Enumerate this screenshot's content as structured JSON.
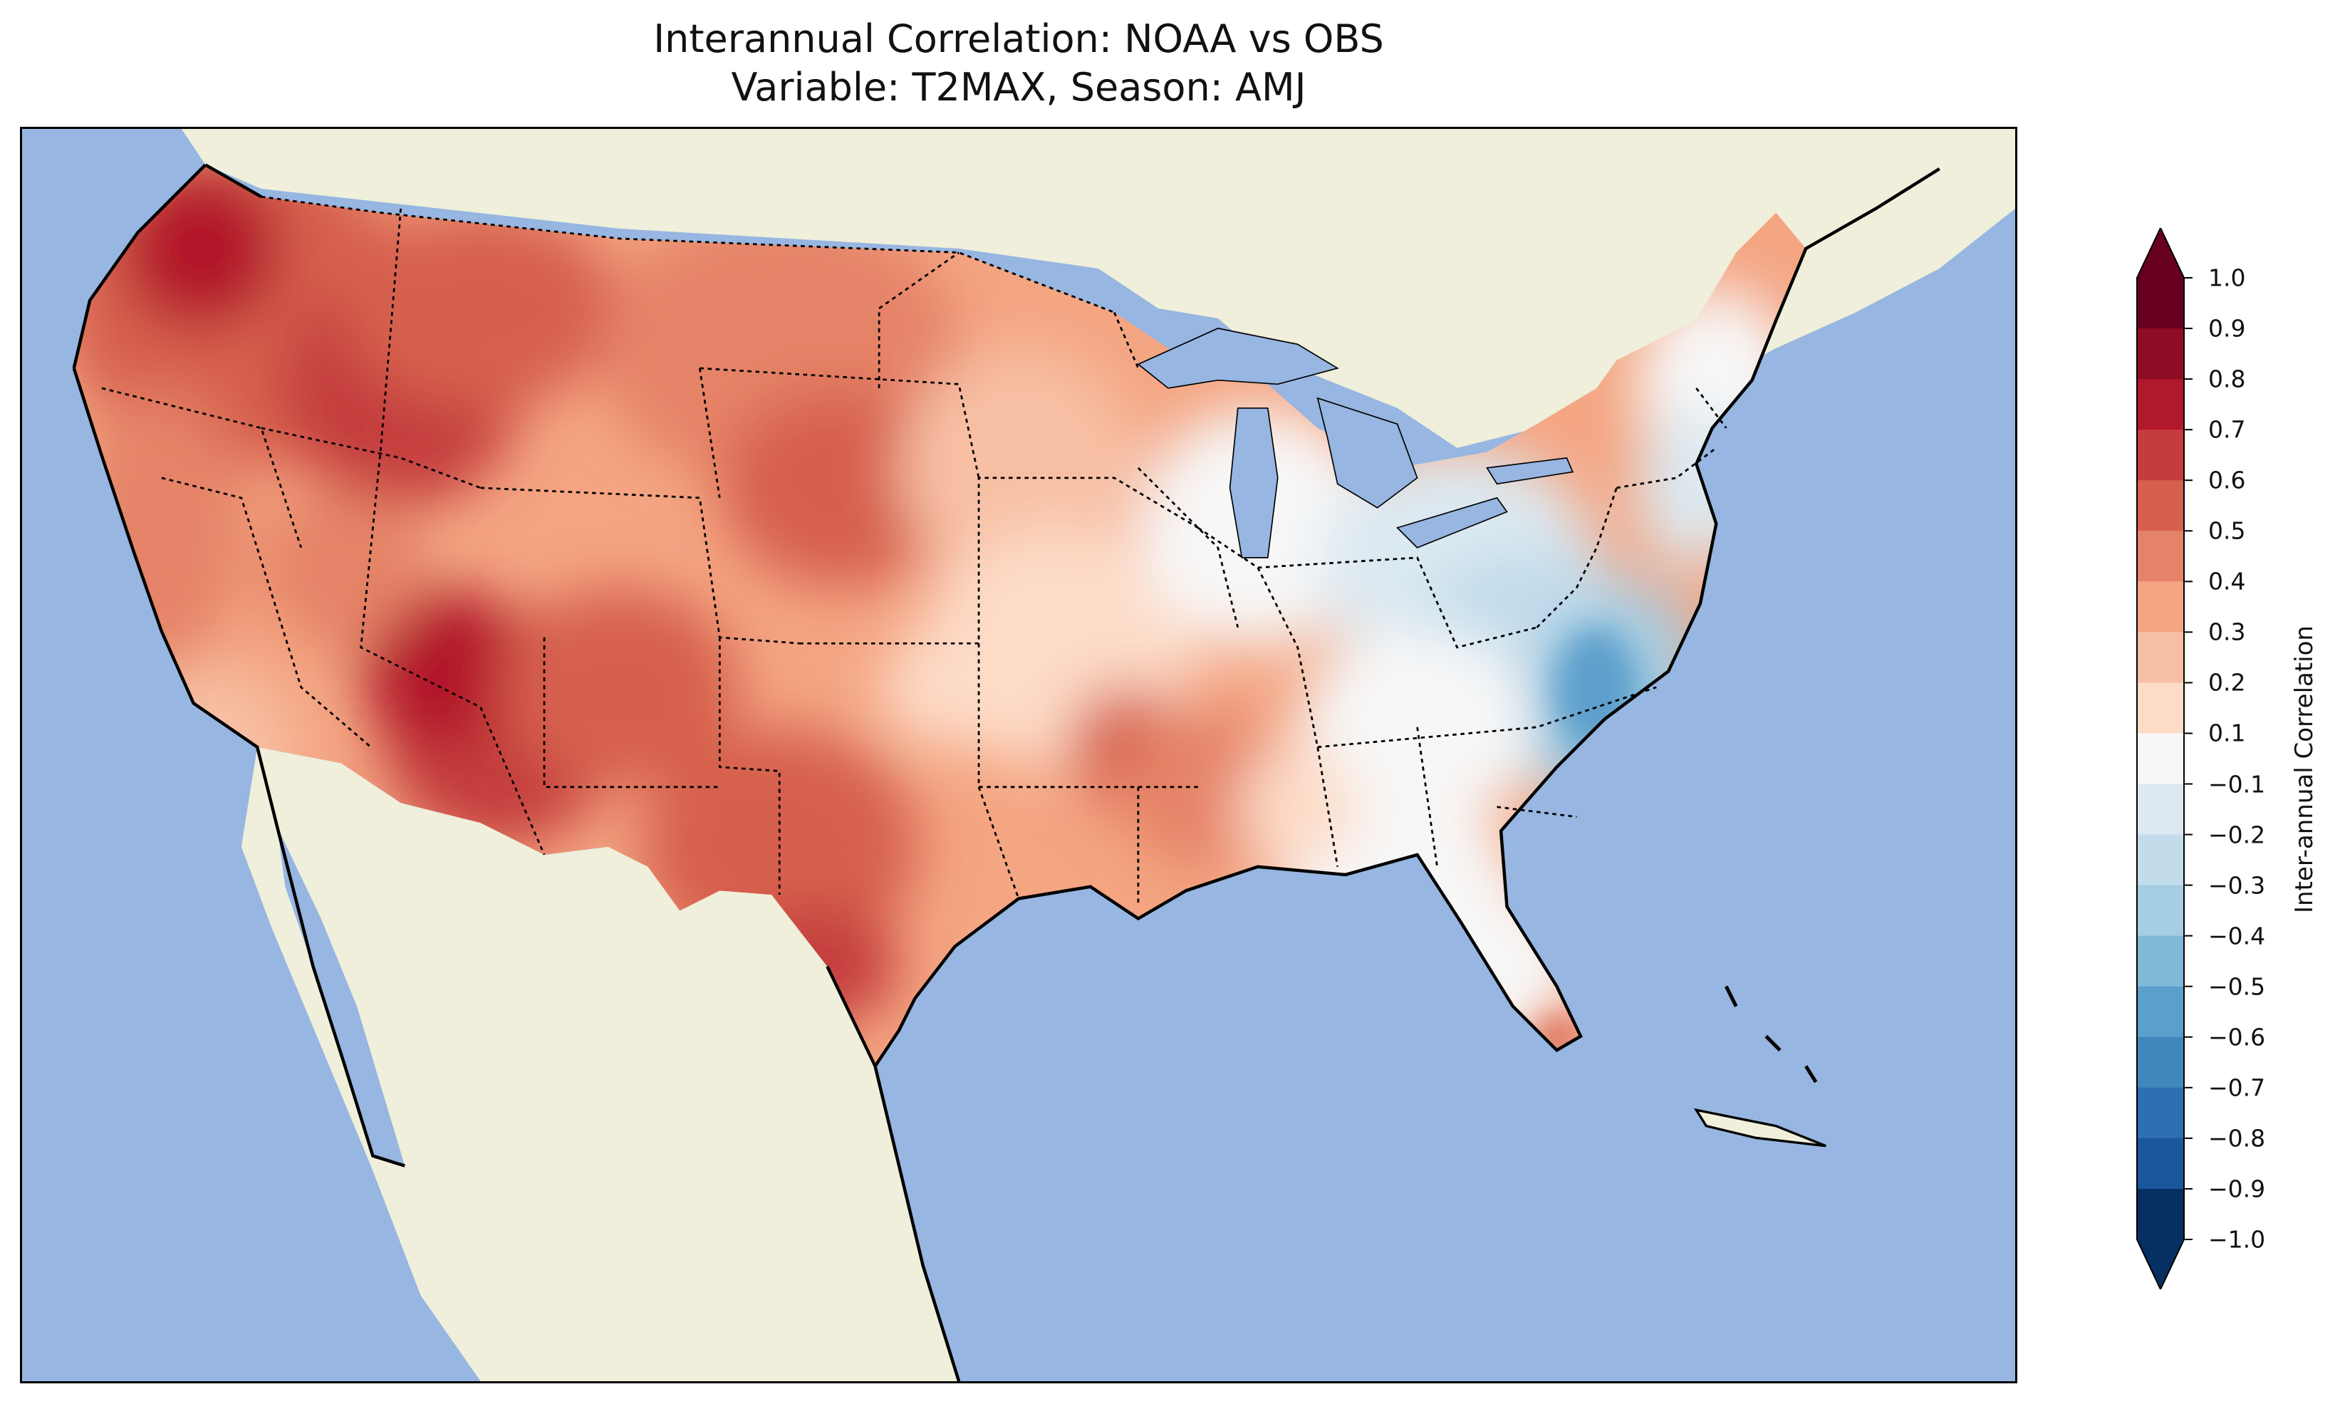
{
  "title": {
    "line1": "Interannual Correlation: NOAA vs OBS",
    "line2": "Variable: T2MAX, Season: AMJ"
  },
  "map": {
    "projection": "Lambert conformal",
    "region": "Contiguous United States",
    "colormap": "RdBu_r",
    "ocean_color": "#97b6e1",
    "land_color": "#efefdb",
    "border_style": "dotted state and national boundaries"
  },
  "colorbar": {
    "label": "Inter-annual Correlation",
    "ticks": [
      "1.0",
      "0.9",
      "0.8",
      "0.7",
      "0.6",
      "0.5",
      "0.4",
      "0.3",
      "0.2",
      "0.1",
      "−0.1",
      "−0.2",
      "−0.3",
      "−0.4",
      "−0.5",
      "−0.6",
      "−0.7",
      "−0.8",
      "−0.9",
      "−1.0"
    ],
    "levels": [
      1.0,
      0.9,
      0.8,
      0.7,
      0.6,
      0.5,
      0.4,
      0.3,
      0.2,
      0.1,
      -0.1,
      -0.2,
      -0.3,
      -0.4,
      -0.5,
      -0.6,
      -0.7,
      -0.8,
      -0.9,
      -1.0
    ],
    "colors": [
      "#67001f",
      "#8f0c25",
      "#b2182b",
      "#c43c3c",
      "#d6604d",
      "#e58368",
      "#f4a582",
      "#f7c0a4",
      "#fddbc7",
      "#f7f7f7",
      "#dce9f1",
      "#c2dceb",
      "#a5cde3",
      "#80b8d8",
      "#5b9fcb",
      "#3f88be",
      "#2d6fb0",
      "#1b579d",
      "#053061"
    ],
    "extend": "both"
  }
}
